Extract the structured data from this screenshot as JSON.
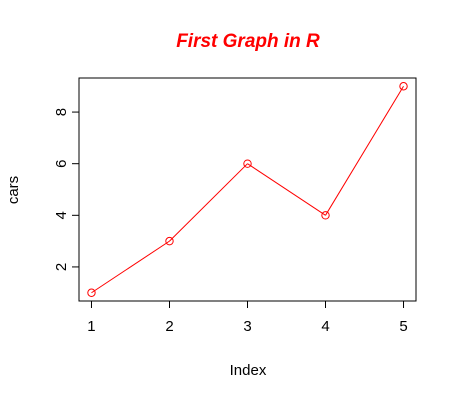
{
  "chart_data": {
    "type": "line",
    "title": "First Graph in R",
    "xlabel": "Index",
    "ylabel": "cars",
    "x": [
      1,
      2,
      3,
      4,
      5
    ],
    "series": [
      {
        "values": [
          1,
          3,
          6,
          4,
          9
        ]
      }
    ],
    "xlim": [
      0.84,
      5.16
    ],
    "ylim": [
      0.68,
      9.32
    ],
    "xticks": [
      1,
      2,
      3,
      4,
      5
    ],
    "yticks": [
      2,
      4,
      6,
      8
    ],
    "xtick_labels": [
      "1",
      "2",
      "3",
      "4",
      "5"
    ],
    "ytick_labels": [
      "2",
      "4",
      "6",
      "8"
    ],
    "grid": false,
    "legend": "none",
    "markers": "open-circle"
  },
  "colors": {
    "title": "#ff0000",
    "series": "#ff0000",
    "axis": "#000000",
    "background": "#ffffff"
  }
}
